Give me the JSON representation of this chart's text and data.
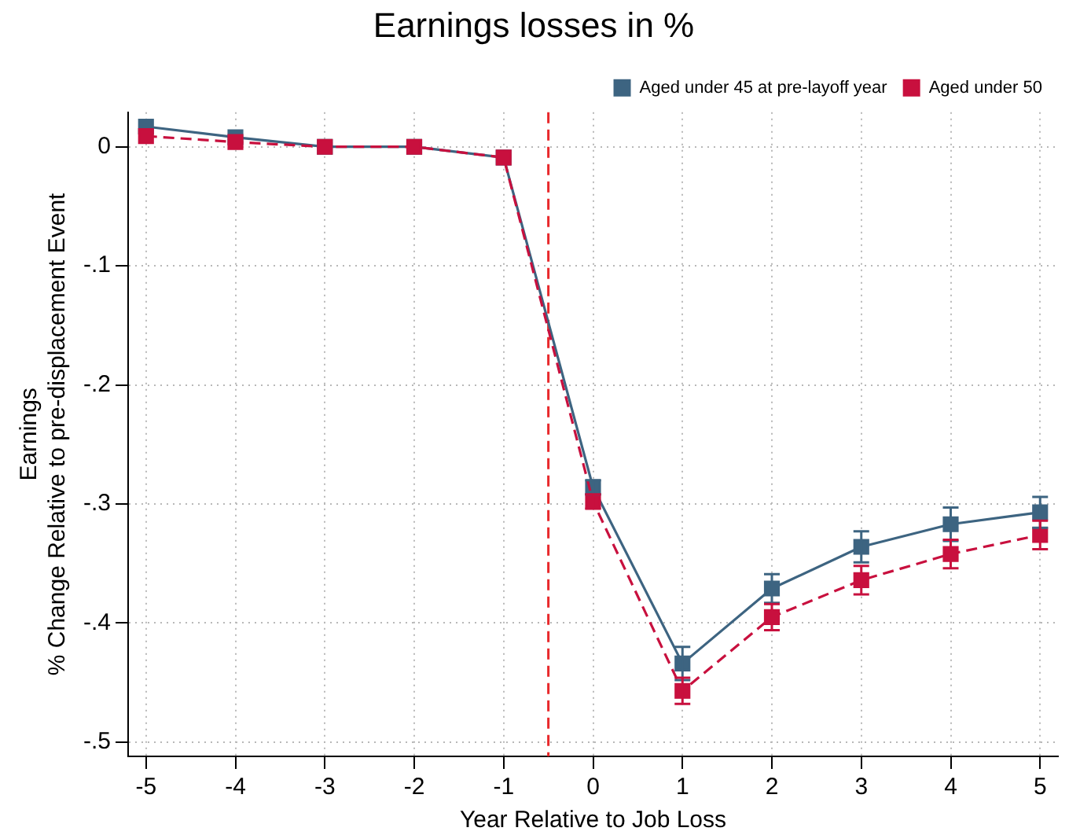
{
  "chart_data": {
    "type": "line",
    "title": "Earnings losses in %",
    "xlabel": "Year Relative to Job Loss",
    "ylabel": "Earnings\n% Change Relative to pre-displacement Event",
    "x": [
      -5,
      -4,
      -3,
      -2,
      -1,
      0,
      1,
      2,
      3,
      4,
      5
    ],
    "series": [
      {
        "name": "Aged under 45 at pre-layoff year",
        "color": "#3d6481",
        "line_style": "solid",
        "values": [
          0.017,
          0.008,
          0,
          0,
          -0.009,
          -0.286,
          -0.434,
          -0.371,
          -0.336,
          -0.317,
          -0.307
        ],
        "errors": [
          null,
          null,
          null,
          null,
          null,
          0.006,
          0.014,
          0.012,
          0.013,
          0.014,
          0.013
        ]
      },
      {
        "name": "Aged under 50",
        "color": "#c8103e",
        "line_style": "dashed",
        "values": [
          0.009,
          0.004,
          0,
          0,
          -0.009,
          -0.298,
          -0.457,
          -0.395,
          -0.364,
          -0.342,
          -0.326
        ],
        "errors": [
          null,
          null,
          null,
          null,
          null,
          0.006,
          0.011,
          0.011,
          0.012,
          0.012,
          0.012
        ]
      }
    ],
    "xlim": [
      -5.2,
      5.2
    ],
    "xticks": [
      -5,
      -4,
      -3,
      -2,
      -1,
      0,
      1,
      2,
      3,
      4,
      5
    ],
    "ylim": [
      -0.512,
      0.029
    ],
    "yticks": [
      {
        "value": 0,
        "label": "0"
      },
      {
        "value": -0.1,
        "label": "-.1"
      },
      {
        "value": -0.2,
        "label": "-.2"
      },
      {
        "value": -0.3,
        "label": "-.3"
      },
      {
        "value": -0.4,
        "label": "-.4"
      },
      {
        "value": -0.5,
        "label": "-.5"
      }
    ],
    "ref_lines": [
      {
        "axis": "x",
        "value": -0.5,
        "color": "#e8282b",
        "line_style": "dashed"
      }
    ],
    "grid": true,
    "legend": "top right",
    "marker": "square"
  }
}
